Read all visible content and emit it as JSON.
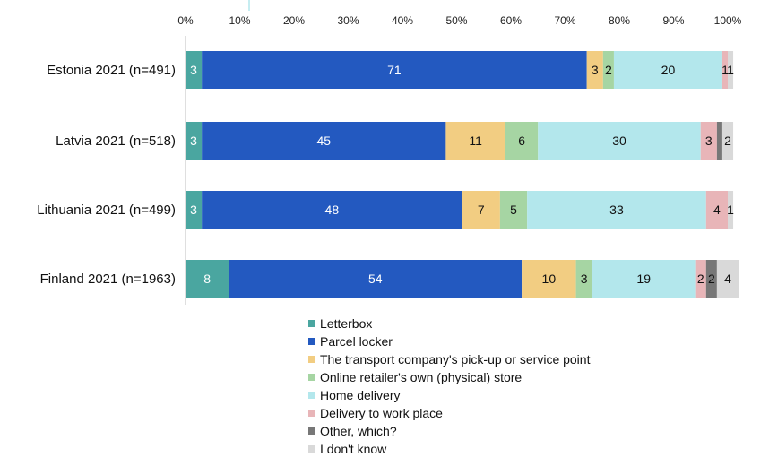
{
  "chart_data": {
    "type": "bar",
    "orientation": "horizontal",
    "stacked": true,
    "categories": [
      "Estonia 2021 (n=491)",
      "Latvia 2021 (n=518)",
      "Lithuania 2021 (n=499)",
      "Finland 2021 (n=1963)"
    ],
    "x_ticks": [
      "0%",
      "10%",
      "20%",
      "30%",
      "40%",
      "50%",
      "60%",
      "70%",
      "80%",
      "90%",
      "100%"
    ],
    "xlim": [
      0,
      100
    ],
    "legend_position": "bottom",
    "series": [
      {
        "name": "Letterbox",
        "color": "#4aa6a0",
        "label_color": "#ffffff",
        "values": [
          3,
          3,
          3,
          8
        ]
      },
      {
        "name": "Parcel locker",
        "color": "#2359c0",
        "label_color": "#ffffff",
        "values": [
          71,
          45,
          48,
          54
        ]
      },
      {
        "name": "The transport company's pick-up or service point",
        "color": "#f2cd82",
        "label_color": "#111111",
        "values": [
          3,
          11,
          7,
          10
        ]
      },
      {
        "name": "Online retailer's own (physical) store",
        "color": "#a6d5a3",
        "label_color": "#111111",
        "values": [
          2,
          6,
          5,
          3
        ]
      },
      {
        "name": "Home delivery",
        "color": "#b3e7ec",
        "label_color": "#111111",
        "values": [
          20,
          30,
          33,
          19
        ]
      },
      {
        "name": "Delivery to work place",
        "color": "#e8b5b8",
        "label_color": "#111111",
        "values": [
          1,
          3,
          4,
          2
        ]
      },
      {
        "name": "Other, which?",
        "color": "#777777",
        "label_color": "#111111",
        "values": [
          0,
          1,
          0,
          2
        ]
      },
      {
        "name": "I don't know",
        "color": "#d9d9d9",
        "label_color": "#111111",
        "values": [
          1,
          2,
          1,
          4
        ]
      }
    ],
    "data_labels": [
      [
        "3",
        "71",
        "3",
        "2",
        "20",
        "1",
        "",
        "1"
      ],
      [
        "3",
        "45",
        "11",
        "6",
        "30",
        "3",
        "",
        "2"
      ],
      [
        "3",
        "48",
        "7",
        "5",
        "33",
        "4",
        "",
        "1"
      ],
      [
        "8",
        "54",
        "10",
        "3",
        "19",
        "2",
        "2",
        "4"
      ]
    ]
  }
}
